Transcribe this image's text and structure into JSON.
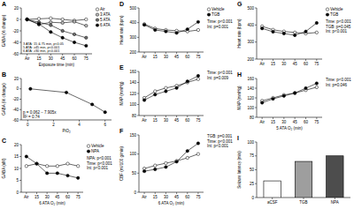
{
  "chart_data": [
    {
      "type": "line",
      "title": "A",
      "x_label": "Exposure time (min)",
      "y_label": "GABA (% change)",
      "categories": [
        "Air",
        "15",
        "30",
        "45",
        "60",
        "75"
      ],
      "series": [
        {
          "name": "Air",
          "color": "#ffffff",
          "marker": "circle",
          "values": [
            0,
            1,
            2,
            0,
            -2,
            0
          ]
        },
        {
          "name": "3 ATA",
          "color": "#bdbdbd",
          "marker": "circle",
          "values": [
            0,
            -9,
            -5,
            -6,
            -4,
            -11
          ]
        },
        {
          "name": "5 ATA",
          "color": "#6e6e6e",
          "marker": "circle",
          "values": [
            0,
            -5,
            -10,
            -20,
            -26,
            -32
          ]
        },
        {
          "name": "6 ATA",
          "color": "#000000",
          "marker": "circle",
          "values": [
            0,
            -8,
            -22,
            -32,
            -40,
            -46
          ]
        }
      ],
      "ylim": [
        -60,
        20
      ],
      "yticks": [
        -60,
        -40,
        -20,
        0,
        20
      ],
      "legend": "right",
      "annotations": [
        "3 ATA: 15 & 75 min, p<0.05",
        "5 ATA: ≥45 min, p<0.001",
        "6 ATA: ≥30 min, p<0.001"
      ]
    },
    {
      "type": "line",
      "title": "B",
      "x_label": "PiO₂",
      "y_label": "GABA (% change)",
      "x": [
        0.21,
        3,
        5,
        6
      ],
      "series": [
        {
          "color": "#000000",
          "marker": "circle",
          "values": [
            0,
            -7,
            -30,
            -45
          ]
        }
      ],
      "xlim": [
        -0.5,
        6.5
      ],
      "xticks": [
        0,
        2,
        4,
        6
      ],
      "ylim": [
        -60,
        20
      ],
      "yticks": [
        -60,
        -40,
        -20,
        0,
        20
      ],
      "annotations": [
        "p = 0.062 − 7.905x",
        "R² = 0.74"
      ]
    },
    {
      "type": "line",
      "title": "C",
      "x_label": "6 ATA O₂ (min)",
      "y_label": "GABA (nM)",
      "categories": [
        "Air",
        "15",
        "30",
        "45",
        "60",
        "75"
      ],
      "series": [
        {
          "name": "Vehicle",
          "color": "#ffffff",
          "marker": "circle",
          "values": [
            11,
            12,
            11,
            11,
            12,
            11
          ]
        },
        {
          "name": "NPA",
          "color": "#000000",
          "marker": "circle",
          "values": [
            15,
            12,
            8,
            8,
            7,
            6
          ]
        }
      ],
      "ylim": [
        0,
        20
      ],
      "yticks": [
        0,
        5,
        10,
        15,
        20
      ],
      "legend": "right",
      "annotations": [
        "NPA: p<0.001",
        "Time: p<0.001",
        "Int: p<0.001"
      ]
    },
    {
      "type": "line",
      "title": "D",
      "y_label": "Heart rate (bpm)",
      "categories": [
        "Air",
        "15",
        "30",
        "45",
        "60",
        "75"
      ],
      "series": [
        {
          "name": "Vehicle",
          "color": "#ffffff",
          "marker": "circle",
          "values": [
            390,
            360,
            350,
            345,
            340,
            350
          ]
        },
        {
          "name": "TGB",
          "color": "#000000",
          "marker": "circle",
          "values": [
            385,
            350,
            340,
            330,
            355,
            405
          ]
        }
      ],
      "ylim": [
        200,
        500
      ],
      "yticks": [
        200,
        300,
        400,
        500
      ],
      "legend": "right",
      "annotations": [
        "Time: p<0.001",
        "Int: p=0.001"
      ]
    },
    {
      "type": "line",
      "title": "E",
      "y_label": "MAP (mmHg)",
      "categories": [
        "Air",
        "15",
        "30",
        "45",
        "60",
        "75"
      ],
      "series": [
        {
          "color": "#ffffff",
          "marker": "circle",
          "values": [
            112,
            124,
            130,
            134,
            140,
            146
          ]
        },
        {
          "color": "#000000",
          "marker": "circle",
          "values": [
            108,
            118,
            124,
            130,
            142,
            152
          ]
        }
      ],
      "ylim": [
        80,
        160
      ],
      "yticks": [
        80,
        100,
        120,
        140,
        160
      ],
      "annotations": [
        "Time: p<0.001",
        "Int: p=0.009"
      ]
    },
    {
      "type": "line",
      "title": "F",
      "x_label": "6 ATA O₂ (min)",
      "y_label": "CBF (ml/100 g/min)",
      "categories": [
        "Air",
        "15",
        "30",
        "45",
        "60",
        "75"
      ],
      "series": [
        {
          "color": "#ffffff",
          "marker": "circle",
          "values": [
            62,
            70,
            76,
            82,
            90,
            100
          ]
        },
        {
          "color": "#000000",
          "marker": "circle",
          "values": [
            55,
            60,
            66,
            80,
            108,
            128
          ]
        }
      ],
      "ylim": [
        0,
        150
      ],
      "yticks": [
        0,
        50,
        100,
        150
      ],
      "annotations": [
        "TGB: p=0.001",
        "Time: p<0.001",
        "Int: p<0.001"
      ]
    },
    {
      "type": "line",
      "title": "G",
      "y_label": "Heart rate (bpm)",
      "categories": [
        "Air",
        "15",
        "30",
        "45",
        "60",
        "75"
      ],
      "series": [
        {
          "name": "Vehicle",
          "color": "#ffffff",
          "marker": "circle",
          "values": [
            392,
            372,
            362,
            356,
            350,
            356
          ]
        },
        {
          "name": "TGB",
          "color": "#000000",
          "marker": "circle",
          "values": [
            380,
            360,
            350,
            340,
            362,
            412
          ]
        }
      ],
      "ylim": [
        200,
        500
      ],
      "yticks": [
        200,
        300,
        400,
        500
      ],
      "legend": "right",
      "annotations": [
        "Time: p<0.001",
        "TGB: p=0.045",
        "Int: p<0.001"
      ]
    },
    {
      "type": "line",
      "title": "H",
      "x_label": "5 ATA O₂ (min)",
      "y_label": "MAP (mmHg)",
      "categories": [
        "Air",
        "15",
        "30",
        "45",
        "60",
        "75"
      ],
      "series": [
        {
          "color": "#ffffff",
          "marker": "circle",
          "values": [
            114,
            120,
            126,
            130,
            136,
            142
          ]
        },
        {
          "color": "#000000",
          "marker": "circle",
          "values": [
            110,
            118,
            124,
            130,
            140,
            150
          ]
        }
      ],
      "ylim": [
        80,
        160
      ],
      "yticks": [
        80,
        100,
        120,
        140,
        160
      ],
      "annotations": [
        "Time: p<0.001",
        "Int: p=0.046"
      ]
    },
    {
      "type": "bar",
      "title": "I",
      "y_label": "Seizure latency (min)",
      "categories": [
        "aCSF",
        "TGB",
        "NPA"
      ],
      "values": [
        30,
        65,
        75
      ],
      "colors": [
        "#ffffff",
        "#9e9e9e",
        "#4d4d4d"
      ],
      "ylim": [
        0,
        100
      ],
      "yticks": [
        0,
        25,
        50,
        75,
        100
      ]
    }
  ]
}
